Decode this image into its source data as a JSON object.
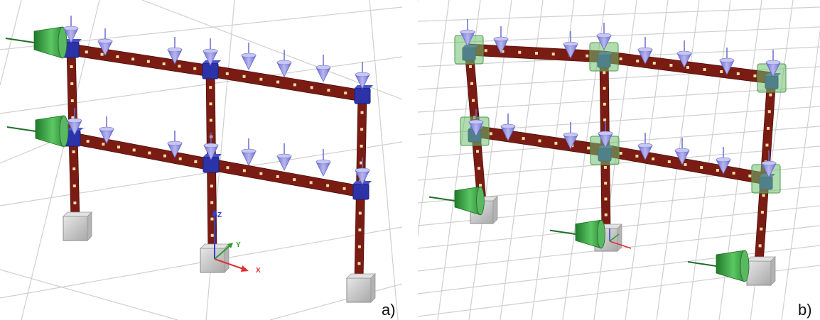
{
  "panels": [
    {
      "id": "a",
      "label": "a)",
      "axes": {
        "x_label": "X",
        "y_label": "Y",
        "z_label": "Z"
      }
    },
    {
      "id": "b",
      "label": "b)"
    }
  ],
  "colors": {
    "beam": "#7a1c14",
    "beam_marker": "#f3dfa0",
    "node": "#2c33a8",
    "load_arrow": "#8f8fe0",
    "lateral_load": "#2e9a3a",
    "support": "#c8c8c8",
    "grid": "#cfcfcf",
    "mass_box": "#6fbf6f",
    "axis_x": "#e03030",
    "axis_y": "#2aa02a",
    "axis_z": "#3040d0"
  }
}
